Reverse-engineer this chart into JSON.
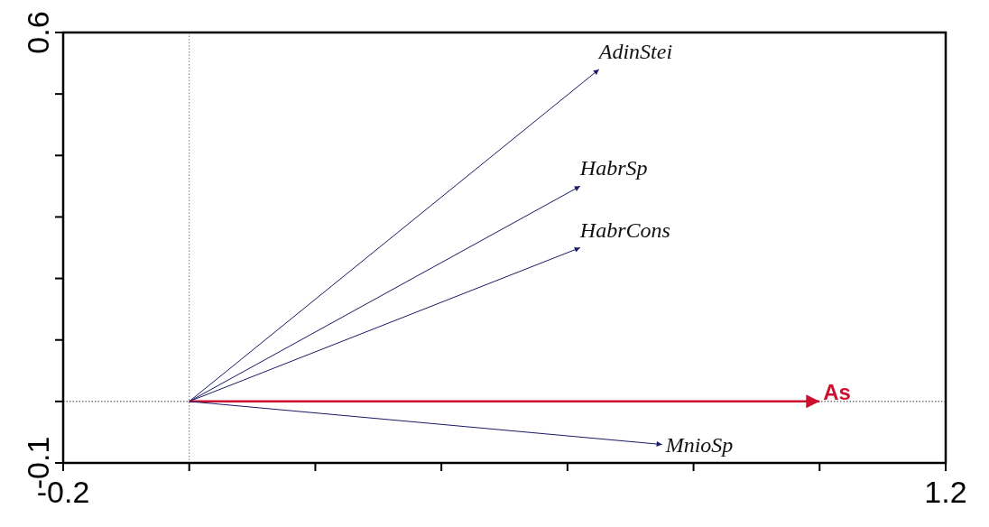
{
  "chart_data": {
    "type": "line",
    "xlim": [
      -0.2,
      1.2
    ],
    "ylim": [
      -0.1,
      0.6
    ],
    "xticks": [
      -0.2,
      {
        "value": 0,
        "label": null
      },
      {
        "value": 0.2,
        "label": null
      },
      {
        "value": 0.4,
        "label": null
      },
      {
        "value": 0.6,
        "label": null
      },
      {
        "value": 0.8,
        "label": null
      },
      {
        "value": 1.0,
        "label": null
      },
      1.2
    ],
    "yticks": [
      -0.1,
      {
        "value": 0,
        "label": null
      },
      {
        "value": 0.1,
        "label": null
      },
      {
        "value": 0.2,
        "label": null
      },
      {
        "value": 0.3,
        "label": null
      },
      {
        "value": 0.4,
        "label": null
      },
      {
        "value": 0.5,
        "label": null
      },
      0.6
    ],
    "grid": false,
    "ref_lines": [
      {
        "axis": "x",
        "value": 0,
        "line_style": "dotted",
        "color": "#777777"
      },
      {
        "axis": "y",
        "value": 0,
        "line_style": "dotted",
        "color": "#333333"
      }
    ],
    "series": [
      {
        "type": "line",
        "name": "AdinStei",
        "color": "#1a1a66",
        "x": [
          0,
          0.65
        ],
        "values": [
          0,
          0.54
        ]
      },
      {
        "type": "line",
        "name": "HabrSp",
        "color": "#1a1a66",
        "x": [
          0,
          0.62
        ],
        "values": [
          0,
          0.35
        ]
      },
      {
        "type": "line",
        "name": "HabrCons",
        "color": "#1a1a66",
        "x": [
          0,
          0.62
        ],
        "values": [
          0,
          0.25
        ]
      },
      {
        "type": "line",
        "name": "As",
        "color": "#cc1030",
        "x": [
          0,
          1.0
        ],
        "values": [
          0,
          0
        ]
      },
      {
        "type": "line",
        "name": "MnioSp",
        "color": "#1a1a66",
        "x": [
          0,
          0.75
        ],
        "values": [
          0,
          -0.07
        ]
      }
    ]
  }
}
